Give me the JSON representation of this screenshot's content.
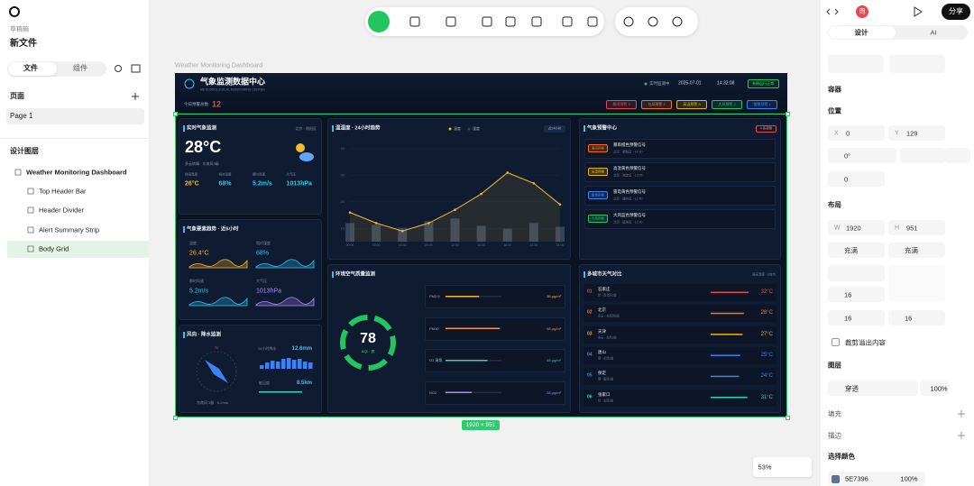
{
  "app": {
    "drafts": "草稿箱",
    "file_name": "新文件",
    "tabs": [
      "文件",
      "组件"
    ],
    "pages_heading": "页面",
    "pages": [
      "Page 1"
    ],
    "layers_heading": "设计图层",
    "layers": [
      "Weather Monitoring Dashboard",
      "Top Header Bar",
      "Header Divider",
      "Alert Summary Strip",
      "Body Grid"
    ],
    "frame_label": "Weather Monitoring Dashboard",
    "frame_size": "1920 × 951",
    "zoom": "53%"
  },
  "inspector": {
    "avatar": "周",
    "share": "分享",
    "tabs": [
      "设计",
      "AI"
    ],
    "container": "容器",
    "position": "位置",
    "x": {
      "label": "X",
      "value": "0"
    },
    "y": {
      "label": "Y",
      "value": "129"
    },
    "rotation": "0°",
    "radius": "0",
    "layout": "布局",
    "w": {
      "label": "W",
      "value": "1920"
    },
    "h": {
      "label": "H",
      "value": "951"
    },
    "sizing": [
      "充满",
      "充满"
    ],
    "gap": "16",
    "padding": [
      "16",
      "16"
    ],
    "clip": "裁剪溢出内容",
    "layer": "图层",
    "blend": "穿透",
    "opacity": "100%",
    "fill": "填充",
    "stroke": "描边",
    "selection_colors": "选择颜色",
    "color": {
      "hex": "5E7396",
      "opacity": "100%",
      "swatch": "#5e7396"
    }
  },
  "dashboard": {
    "header": {
      "title": "气象监测数据中心",
      "subtitle": "METEOROLOGICAL MONITORING CENTER",
      "status": "实时监测中",
      "date": "2025-07-01",
      "time": "14:32:08",
      "button": "系统运行正常"
    },
    "alerts": {
      "label": "今日预警总数",
      "total": "12",
      "chips": [
        {
          "text": "暴雨预警 3",
          "color": "#e5484d"
        },
        {
          "text": "台风预警 1",
          "color": "#f97316"
        },
        {
          "text": "高温预警 5",
          "color": "#eab308"
        },
        {
          "text": "大风预警 2",
          "color": "#22c55e"
        },
        {
          "text": "雷暴预警 1",
          "color": "#3b82f6"
        }
      ]
    },
    "current": {
      "title": "实时气象监测",
      "location": "北京 · 朝阳区",
      "temp": "28°C",
      "desc": "多云转晴 · 东南风3级",
      "metrics": [
        {
          "label": "体感温度",
          "value": "26°C",
          "color": "#f5b82e"
        },
        {
          "label": "相对湿度",
          "value": "68%",
          "color": "#33c3f0"
        },
        {
          "label": "瞬时风速",
          "value": "5.2m/s",
          "color": "#33c3f0"
        },
        {
          "label": "大气压",
          "value": "1013hPa",
          "color": "#33c3f0"
        }
      ]
    },
    "trend": {
      "title": "温湿度 · 24小时趋势",
      "range": "近24小时",
      "chart": {
        "type": "line",
        "categories": [
          "00:00",
          "03:00",
          "06:00",
          "09:00",
          "12:00",
          "15:00",
          "18:00",
          "21:00",
          "24:00"
        ],
        "series": [
          {
            "name": "温度",
            "color": "#f5b82e",
            "values": [
              16,
              12,
              9,
              12,
              17,
              23,
              31,
              27,
              19
            ]
          },
          {
            "name": "湿度",
            "color": "#34435e",
            "axis": "y2",
            "values": [
              20,
              18,
              15,
              22,
              25,
              17,
              14,
              20,
              16
            ]
          }
        ],
        "ylim": [
          5,
          40
        ],
        "yticks": [
          10,
          20,
          30,
          40
        ],
        "y2lim": [
          0,
          100
        ]
      }
    },
    "elements": {
      "title": "气象要素趋势 · 近6小时",
      "items": [
        {
          "label": "温度",
          "value": "26.4°C",
          "color": "#f5b82e"
        },
        {
          "label": "相对湿度",
          "value": "68%",
          "color": "#33c3f0"
        },
        {
          "label": "瞬时风速",
          "value": "5.2m/s",
          "color": "#33c3f0"
        },
        {
          "label": "大气压",
          "value": "1013hPa",
          "color": "#a78bfa"
        }
      ]
    },
    "wind": {
      "title": "风向 · 降水监测",
      "north": "N",
      "rain_label": "24小时降水",
      "rain": "12.6mm",
      "visibility_label": "能见度",
      "visibility": "8.5km",
      "summary": "东南风 3级 · 5.2m/s"
    },
    "warnings": {
      "title": "气象预警中心",
      "count": "4 条预警",
      "items": [
        {
          "tag": "暴雨预警",
          "title": "暴雨橙色预警信号",
          "detail": "北京 · 朝阳区 · 14:20",
          "color": "#f97316"
        },
        {
          "tag": "高温预警",
          "title": "高温黄色预警信号",
          "detail": "北京 · 海淀区 · 13:05",
          "color": "#eab308"
        },
        {
          "tag": "雷电预警",
          "title": "雷电黄色预警信号",
          "detail": "北京 · 通州区 · 12:40",
          "color": "#3b82f6"
        },
        {
          "tag": "大风预警",
          "title": "大风蓝色预警信号",
          "detail": "北京 · 延庆区 · 12:30",
          "color": "#22c55e"
        }
      ]
    },
    "air": {
      "title": "环境空气质量监测",
      "aqi": "78",
      "aqi_label": "AQI · 良",
      "items": [
        {
          "name": "PM2.5",
          "value": "36 μg/m³",
          "color": "#f5b82e"
        },
        {
          "name": "PM10",
          "value": "58 μg/m³",
          "color": "#fb923c"
        },
        {
          "name": "O3 臭氧",
          "value": "45 μg/m³",
          "color": "#2dd4bf"
        },
        {
          "name": "NO2",
          "value": "28 μg/m³",
          "color": "#a78bfa"
        }
      ]
    },
    "cities": {
      "title": "多城市天气对比",
      "note": "最高温度 · 6城市",
      "items": [
        {
          "rank": "01",
          "name": "石家庄",
          "detail": "晴 · 西北风2级",
          "temp": "32°C",
          "color": "#e5484d"
        },
        {
          "rank": "02",
          "name": "北京",
          "detail": "多云 · 东南风3级",
          "temp": "28°C",
          "color": "#f97316"
        },
        {
          "rank": "03",
          "name": "天津",
          "detail": "多云 · 东风2级",
          "temp": "27°C",
          "color": "#eab308"
        },
        {
          "rank": "04",
          "name": "唐山",
          "detail": "阴 · 东风2级",
          "temp": "25°C",
          "color": "#3b82f6"
        },
        {
          "rank": "05",
          "name": "保定",
          "detail": "阴 · 南风1级",
          "temp": "24°C",
          "color": "#3b82f6"
        },
        {
          "rank": "06",
          "name": "张家口",
          "detail": "晴 · 北风3级",
          "temp": "31°C",
          "color": "#2dd4bf"
        }
      ]
    }
  }
}
